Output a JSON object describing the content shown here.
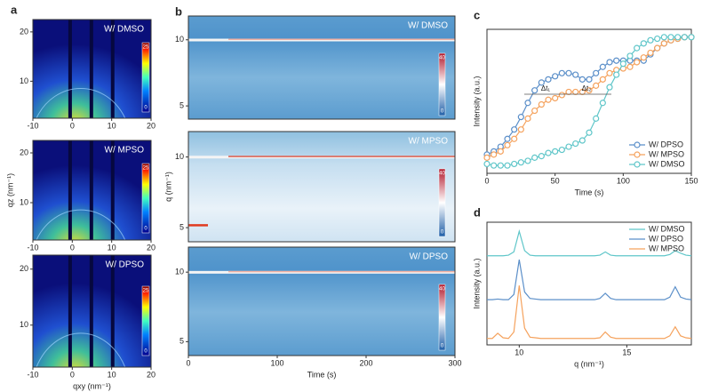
{
  "chart_data": [
    {
      "type": "heatmap",
      "panel": "a",
      "title": "W/ DMSO",
      "xlim": [
        -10,
        20
      ],
      "xticks": [
        -10,
        0,
        10,
        20
      ],
      "ylim": [
        2.5,
        22.5
      ],
      "yticks": [
        10,
        20
      ],
      "colorbar": {
        "ticks": [
          0,
          25
        ]
      }
    },
    {
      "type": "heatmap",
      "title": "W/ MPSO",
      "ylabel": "qz (nm⁻¹)",
      "xlim": [
        -10,
        20
      ],
      "xticks": [
        -10,
        0,
        10,
        20
      ],
      "ylim": [
        2.5,
        22.5
      ],
      "yticks": [
        10,
        20
      ],
      "colorbar": {
        "ticks": [
          0,
          25
        ]
      }
    },
    {
      "type": "heatmap",
      "title": "W/ DPSO",
      "xlabel": "qxy (nm⁻¹)",
      "xlim": [
        -10,
        20
      ],
      "xticks": [
        -10,
        0,
        10,
        20
      ],
      "ylim": [
        2.5,
        22.5
      ],
      "yticks": [
        10,
        20
      ],
      "colorbar": {
        "ticks": [
          0,
          25
        ]
      }
    },
    {
      "type": "heatmap",
      "panel": "b",
      "title": "W/ DMSO",
      "ylim": [
        4,
        11.8
      ],
      "yticks": [
        5,
        10
      ],
      "colorbar": {
        "ticks": [
          0,
          40
        ]
      }
    },
    {
      "type": "heatmap",
      "title": "W/ MPSO",
      "ylabel": "q (nm⁻¹)",
      "ylim": [
        4,
        11.8
      ],
      "yticks": [
        5,
        10
      ],
      "colorbar": {
        "ticks": [
          0,
          40
        ]
      }
    },
    {
      "type": "heatmap",
      "title": "W/ DPSO",
      "xlabel": "Time (s)",
      "xlim": [
        0,
        300
      ],
      "xticks": [
        0,
        100,
        200,
        300
      ],
      "ylim": [
        4,
        11.8
      ],
      "yticks": [
        5,
        10
      ],
      "colorbar": {
        "ticks": [
          0,
          40
        ]
      }
    },
    {
      "type": "line",
      "panel": "c",
      "xlabel": "Time (s)",
      "ylabel": "Intensity (a.u.)",
      "markers": true,
      "legend": "lower right",
      "xlim": [
        0,
        150
      ],
      "xticks": [
        0,
        50,
        100,
        150
      ],
      "ylim": [
        0,
        0.92
      ],
      "annotations": [
        "Δt₁",
        "Δt₂"
      ],
      "x": [
        0,
        5,
        10,
        15,
        20,
        25,
        30,
        35,
        40,
        45,
        50,
        55,
        60,
        65,
        70,
        75,
        80,
        85,
        90,
        95,
        100,
        105,
        110,
        115,
        120,
        125,
        130,
        135,
        140,
        145,
        150
      ],
      "series": [
        {
          "name": "W/ DPSO",
          "color": "#5b8fc9",
          "values": [
            0.12,
            0.14,
            0.17,
            0.22,
            0.28,
            0.36,
            0.45,
            0.53,
            0.58,
            0.6,
            0.62,
            0.64,
            0.64,
            0.63,
            0.6,
            0.6,
            0.64,
            0.68,
            0.71,
            0.72,
            0.72,
            0.72,
            0.72,
            0.72,
            0.76,
            0.8,
            0.83,
            0.85,
            0.86,
            0.87,
            0.87
          ]
        },
        {
          "name": "W/ MPSO",
          "color": "#f5a25d",
          "values": [
            0.1,
            0.12,
            0.14,
            0.18,
            0.22,
            0.28,
            0.35,
            0.4,
            0.44,
            0.47,
            0.48,
            0.5,
            0.52,
            0.52,
            0.52,
            0.53,
            0.56,
            0.6,
            0.64,
            0.66,
            0.67,
            0.68,
            0.71,
            0.74,
            0.77,
            0.8,
            0.83,
            0.85,
            0.86,
            0.87,
            0.87
          ]
        },
        {
          "name": "W/ DMSO",
          "color": "#5fc6c9",
          "values": [
            0.06,
            0.05,
            0.05,
            0.05,
            0.06,
            0.07,
            0.08,
            0.1,
            0.11,
            0.13,
            0.14,
            0.15,
            0.17,
            0.19,
            0.21,
            0.26,
            0.35,
            0.45,
            0.55,
            0.63,
            0.7,
            0.75,
            0.8,
            0.83,
            0.85,
            0.86,
            0.87,
            0.87,
            0.87,
            0.87,
            0.87
          ]
        }
      ]
    },
    {
      "type": "line",
      "panel": "d",
      "xlabel": "q (nm⁻¹)",
      "ylabel": "Intensity (a.u.)",
      "markers": false,
      "legend": "upper right",
      "xlim": [
        8.5,
        18
      ],
      "xticks": [
        10,
        15
      ],
      "ylim": [
        0,
        9.5
      ],
      "x": [
        8.5,
        8.75,
        9,
        9.25,
        9.5,
        9.75,
        10,
        10.25,
        10.5,
        10.75,
        11,
        11.25,
        11.5,
        11.75,
        12,
        12.25,
        12.5,
        12.75,
        13,
        13.25,
        13.5,
        13.75,
        14,
        14.25,
        14.5,
        14.75,
        15,
        15.25,
        15.5,
        15.75,
        16,
        16.25,
        16.5,
        16.75,
        17,
        17.25,
        17.5,
        17.75,
        18
      ],
      "series": [
        {
          "name": "W/ DMSO",
          "color": "#5fc6c9",
          "values": [
            6.9,
            6.9,
            6.9,
            6.9,
            6.95,
            7.2,
            8.8,
            7.3,
            6.95,
            6.9,
            6.9,
            6.9,
            6.9,
            6.9,
            6.9,
            6.9,
            6.9,
            6.9,
            6.9,
            6.9,
            6.9,
            6.95,
            7.2,
            6.95,
            6.9,
            6.9,
            6.9,
            6.9,
            6.9,
            6.9,
            6.9,
            6.9,
            6.9,
            6.9,
            7.0,
            7.3,
            7.1,
            6.95,
            6.9
          ]
        },
        {
          "name": "W/ DPSO",
          "color": "#5b8fc9",
          "values": [
            3.5,
            3.5,
            3.55,
            3.5,
            3.5,
            3.9,
            6.6,
            4.1,
            3.6,
            3.55,
            3.5,
            3.5,
            3.5,
            3.5,
            3.5,
            3.5,
            3.5,
            3.5,
            3.5,
            3.5,
            3.5,
            3.6,
            4.0,
            3.6,
            3.5,
            3.5,
            3.5,
            3.5,
            3.5,
            3.5,
            3.5,
            3.5,
            3.5,
            3.5,
            3.7,
            4.5,
            3.7,
            3.55,
            3.5
          ]
        },
        {
          "name": "W/ MPSO",
          "color": "#f5a25d",
          "values": [
            0.5,
            0.5,
            0.9,
            0.55,
            0.5,
            1.0,
            4.6,
            1.3,
            0.6,
            0.55,
            0.5,
            0.5,
            0.5,
            0.5,
            0.5,
            0.5,
            0.5,
            0.5,
            0.5,
            0.5,
            0.5,
            0.55,
            1.0,
            0.6,
            0.5,
            0.5,
            0.5,
            0.5,
            0.5,
            0.5,
            0.5,
            0.5,
            0.5,
            0.5,
            0.7,
            1.4,
            0.7,
            0.55,
            0.5
          ]
        }
      ]
    }
  ]
}
